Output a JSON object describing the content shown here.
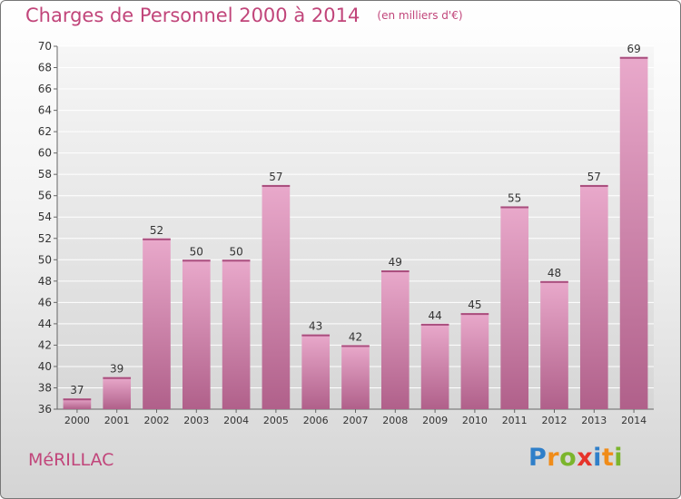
{
  "chart_data": {
    "type": "bar",
    "title": "Charges de Personnel 2000 à 2014",
    "subtitle": "(en milliers d'€)",
    "categories": [
      "2000",
      "2001",
      "2002",
      "2003",
      "2004",
      "2005",
      "2006",
      "2007",
      "2008",
      "2009",
      "2010",
      "2011",
      "2012",
      "2013",
      "2014"
    ],
    "values": [
      37,
      39,
      52,
      50,
      50,
      57,
      43,
      42,
      49,
      44,
      45,
      55,
      48,
      57,
      69
    ],
    "ylim": [
      36,
      70
    ],
    "yticks": [
      36,
      38,
      40,
      42,
      44,
      46,
      48,
      50,
      52,
      54,
      56,
      58,
      60,
      62,
      64,
      66,
      68,
      70
    ],
    "grid": true,
    "bar_color": "#d67fae",
    "text_color": "#c1457a"
  },
  "footer": {
    "city": "MéRILLAC",
    "logo_letters": [
      "P",
      "r",
      "o",
      "x",
      "i",
      "t",
      "i"
    ],
    "logo_colors": [
      "#2f7fc9",
      "#f08c19",
      "#7bb52c",
      "#e6332a",
      "#2f7fc9",
      "#f08c19",
      "#7bb52c"
    ]
  }
}
